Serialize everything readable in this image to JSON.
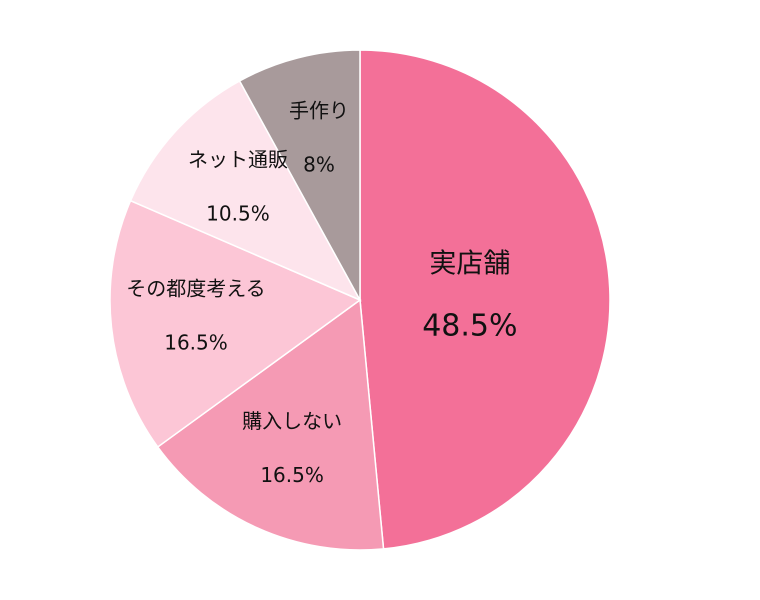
{
  "chart_data": {
    "type": "pie",
    "categories": [
      "実店舗",
      "購入しない",
      "その都度考える",
      "ネット通販",
      "手作り"
    ],
    "values": [
      48.5,
      16.5,
      16.5,
      10.5,
      8
    ],
    "value_labels": [
      "48.5%",
      "16.5%",
      "16.5%",
      "10.5%",
      "8%"
    ],
    "colors": [
      "#f37098",
      "#f59ab4",
      "#fcc6d6",
      "#fde4ec",
      "#a89a9b"
    ]
  }
}
